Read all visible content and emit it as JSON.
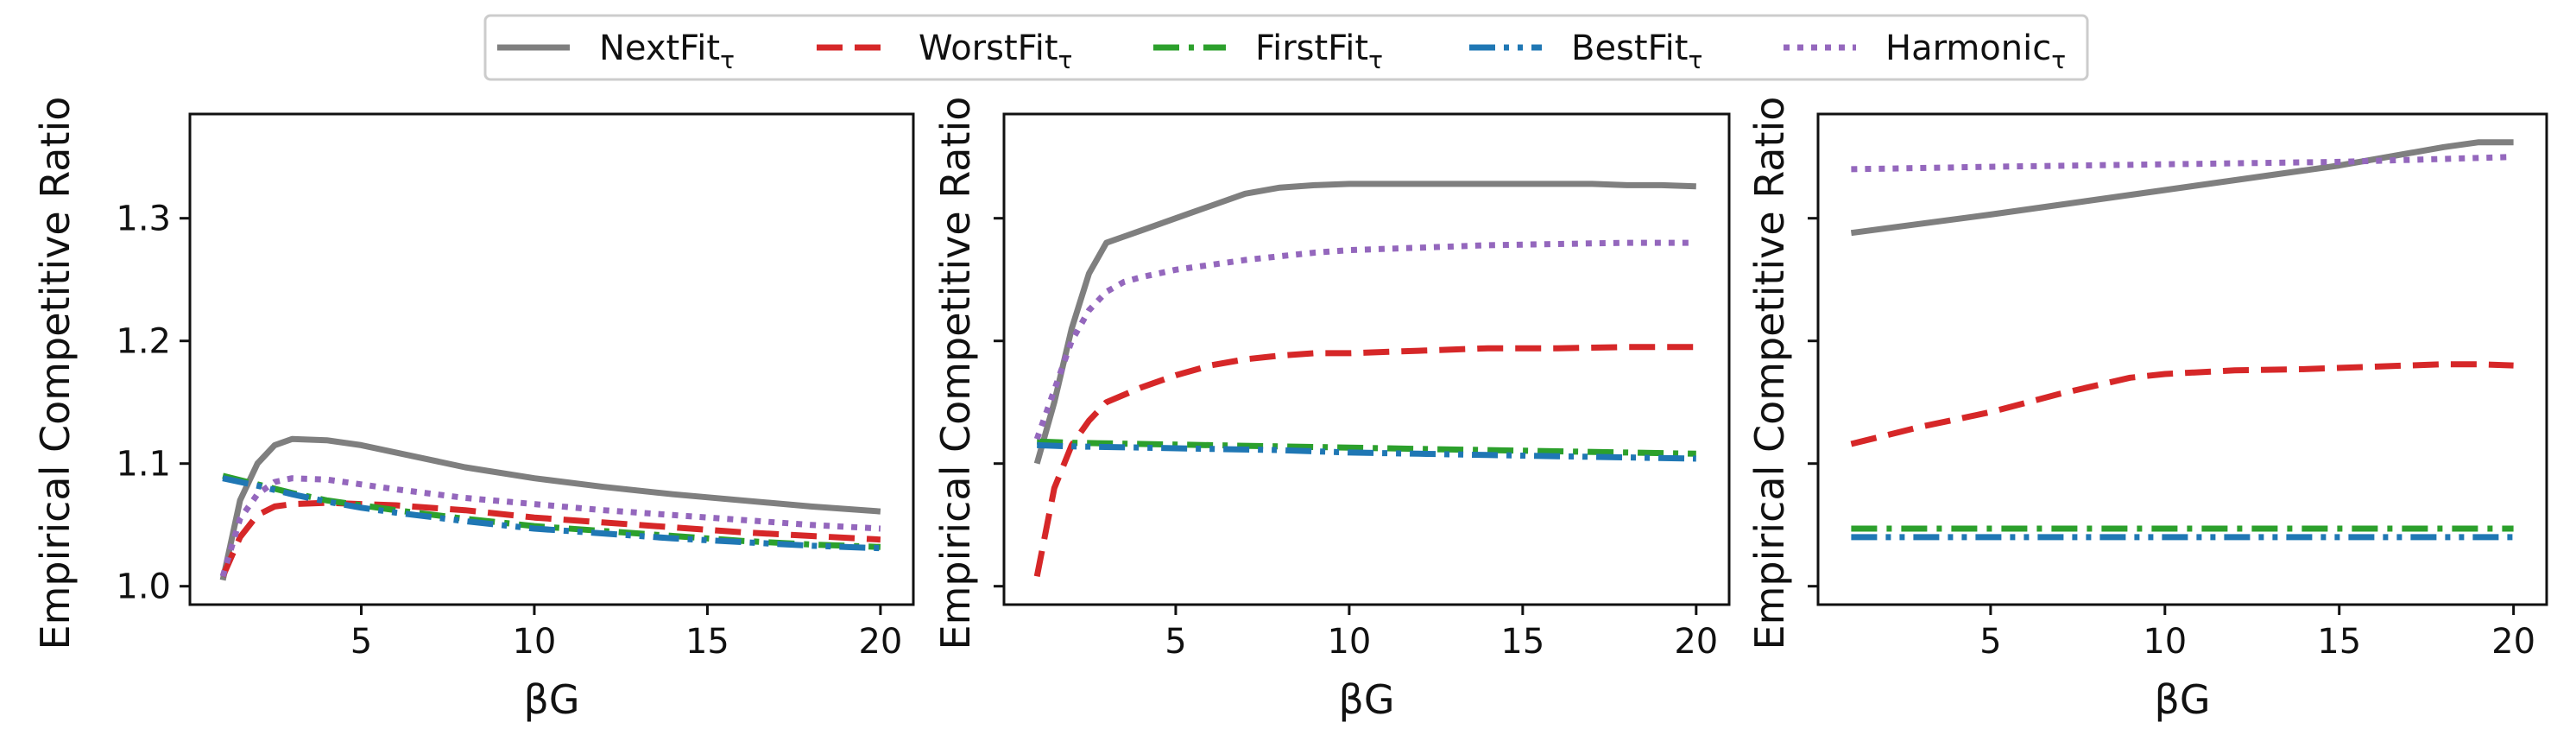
{
  "chart_data": {
    "type": "line",
    "legend": {
      "position": "top-center",
      "entries": [
        {
          "base": "NextFit",
          "sub": "τ",
          "color": "#7f7f7f",
          "dash": "solid"
        },
        {
          "base": "WorstFit",
          "sub": "τ",
          "color": "#d62728",
          "dash": "dashed"
        },
        {
          "base": "FirstFit",
          "sub": "τ",
          "color": "#2ca02c",
          "dash": "dashdot"
        },
        {
          "base": "BestFit",
          "sub": "τ",
          "color": "#1f77b4",
          "dash": "dashdotdot"
        },
        {
          "base": "Harmonic",
          "sub": "τ",
          "color": "#9467bd",
          "dash": "dotted"
        }
      ]
    },
    "panels": [
      {
        "xlabel": "βG",
        "ylabel": "Empirical Competitive Ratio",
        "xlim": [
          0.05,
          20.95
        ],
        "ylim": [
          0.985,
          1.385
        ],
        "xticks": [
          5,
          10,
          15,
          20
        ],
        "yticks": [
          1.0,
          1.1,
          1.2,
          1.3
        ],
        "ytick_labels": [
          "1.0",
          "1.1",
          "1.2",
          "1.3"
        ],
        "series": [
          {
            "name": "NextFit",
            "x": [
              1,
              1.5,
              2,
              2.5,
              3,
              4,
              5,
              6,
              7,
              8,
              10,
              12,
              14,
              16,
              18,
              20
            ],
            "y": [
              1.005,
              1.07,
              1.1,
              1.115,
              1.12,
              1.119,
              1.115,
              1.109,
              1.103,
              1.097,
              1.088,
              1.081,
              1.075,
              1.07,
              1.065,
              1.061
            ]
          },
          {
            "name": "WorstFit",
            "x": [
              1,
              1.5,
              2,
              2.5,
              3,
              4,
              5,
              6,
              8,
              10,
              12,
              14,
              16,
              18,
              20
            ],
            "y": [
              1.008,
              1.04,
              1.058,
              1.065,
              1.067,
              1.068,
              1.067,
              1.066,
              1.062,
              1.056,
              1.052,
              1.048,
              1.044,
              1.041,
              1.038
            ]
          },
          {
            "name": "FirstFit",
            "x": [
              1,
              2,
              3,
              4,
              5,
              6,
              8,
              10,
              12,
              14,
              16,
              18,
              20
            ],
            "y": [
              1.09,
              1.083,
              1.076,
              1.07,
              1.066,
              1.062,
              1.055,
              1.049,
              1.045,
              1.041,
              1.037,
              1.034,
              1.032
            ]
          },
          {
            "name": "BestFit",
            "x": [
              1,
              2,
              3,
              4,
              5,
              6,
              8,
              10,
              12,
              14,
              16,
              18,
              20
            ],
            "y": [
              1.088,
              1.082,
              1.075,
              1.069,
              1.064,
              1.06,
              1.053,
              1.047,
              1.043,
              1.039,
              1.036,
              1.033,
              1.031
            ]
          },
          {
            "name": "Harmonic",
            "x": [
              1,
              1.5,
              2,
              2.5,
              3,
              4,
              5,
              6,
              8,
              10,
              12,
              14,
              16,
              18,
              20
            ],
            "y": [
              1.008,
              1.055,
              1.075,
              1.085,
              1.088,
              1.087,
              1.083,
              1.079,
              1.072,
              1.067,
              1.062,
              1.058,
              1.054,
              1.05,
              1.047
            ]
          }
        ]
      },
      {
        "xlabel": "βG",
        "ylabel": "Empirical Competitive Ratio",
        "xlim": [
          0.05,
          20.95
        ],
        "ylim": [
          0.985,
          1.385
        ],
        "xticks": [
          5,
          10,
          15,
          20
        ],
        "yticks": [
          1.0,
          1.1,
          1.2,
          1.3
        ],
        "ytick_labels": [
          "",
          "",
          "",
          ""
        ],
        "series": [
          {
            "name": "NextFit",
            "x": [
              1,
              1.5,
              2,
              2.5,
              3,
              3.5,
              4,
              5,
              5.5,
              6,
              7,
              8,
              9,
              10,
              11,
              12,
              13,
              14,
              15,
              16,
              17,
              18,
              19,
              20
            ],
            "y": [
              1.1,
              1.15,
              1.21,
              1.255,
              1.28,
              1.285,
              1.29,
              1.3,
              1.305,
              1.31,
              1.32,
              1.325,
              1.327,
              1.328,
              1.328,
              1.328,
              1.328,
              1.328,
              1.328,
              1.328,
              1.328,
              1.327,
              1.327,
              1.326
            ]
          },
          {
            "name": "WorstFit",
            "x": [
              1,
              1.5,
              2,
              2.5,
              3,
              4,
              5,
              6,
              7,
              8,
              9,
              10,
              12,
              14,
              16,
              18,
              20
            ],
            "y": [
              1.008,
              1.08,
              1.115,
              1.135,
              1.15,
              1.162,
              1.172,
              1.18,
              1.185,
              1.188,
              1.19,
              1.19,
              1.192,
              1.194,
              1.194,
              1.195,
              1.195
            ]
          },
          {
            "name": "FirstFit",
            "x": [
              1,
              2,
              4,
              6,
              8,
              10,
              12,
              14,
              16,
              18,
              20
            ],
            "y": [
              1.118,
              1.117,
              1.116,
              1.115,
              1.114,
              1.113,
              1.112,
              1.111,
              1.11,
              1.109,
              1.108
            ]
          },
          {
            "name": "BestFit",
            "x": [
              1,
              2,
              4,
              6,
              8,
              10,
              12,
              14,
              16,
              18,
              20
            ],
            "y": [
              1.115,
              1.114,
              1.113,
              1.112,
              1.111,
              1.109,
              1.108,
              1.107,
              1.106,
              1.105,
              1.104
            ]
          },
          {
            "name": "Harmonic",
            "x": [
              1,
              1.5,
              2,
              2.5,
              3,
              3.5,
              4,
              5,
              6,
              7,
              8,
              9,
              10,
              12,
              14,
              16,
              18,
              20
            ],
            "y": [
              1.12,
              1.16,
              1.2,
              1.225,
              1.24,
              1.248,
              1.252,
              1.258,
              1.262,
              1.266,
              1.269,
              1.272,
              1.274,
              1.276,
              1.278,
              1.279,
              1.28,
              1.28
            ]
          }
        ]
      },
      {
        "xlabel": "βG",
        "ylabel": "Empirical Competitive Ratio",
        "xlim": [
          0.05,
          20.95
        ],
        "ylim": [
          0.985,
          1.385
        ],
        "xticks": [
          5,
          10,
          15,
          20
        ],
        "yticks": [
          1.0,
          1.1,
          1.2,
          1.3
        ],
        "ytick_labels": [
          "",
          "",
          "",
          ""
        ],
        "series": [
          {
            "name": "NextFit",
            "x": [
              1,
              5,
              10,
              15,
              18,
              19,
              20
            ],
            "y": [
              1.288,
              1.303,
              1.323,
              1.343,
              1.358,
              1.362,
              1.362
            ]
          },
          {
            "name": "WorstFit",
            "x": [
              1,
              3,
              5,
              7,
              9,
              10,
              12,
              14,
              16,
              18,
              19,
              20
            ],
            "y": [
              1.116,
              1.13,
              1.142,
              1.157,
              1.17,
              1.173,
              1.176,
              1.177,
              1.179,
              1.181,
              1.181,
              1.18
            ]
          },
          {
            "name": "FirstFit",
            "x": [
              1,
              5,
              10,
              15,
              20
            ],
            "y": [
              1.047,
              1.047,
              1.047,
              1.047,
              1.047
            ]
          },
          {
            "name": "BestFit",
            "x": [
              1,
              5,
              10,
              15,
              20
            ],
            "y": [
              1.04,
              1.04,
              1.04,
              1.04,
              1.04
            ]
          },
          {
            "name": "Harmonic",
            "x": [
              1,
              5,
              10,
              15,
              20
            ],
            "y": [
              1.34,
              1.342,
              1.344,
              1.346,
              1.35
            ]
          }
        ]
      }
    ]
  }
}
